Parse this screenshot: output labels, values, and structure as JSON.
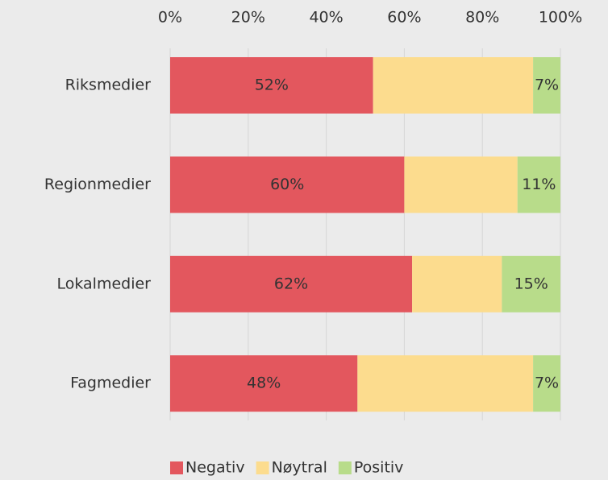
{
  "chart_data": {
    "type": "stacked-barh",
    "categories": [
      "Riksmedier",
      "Regionmedier",
      "Lokalmedier",
      "Fagmedier"
    ],
    "series": [
      {
        "name": "Negativ",
        "color": "#e3575e",
        "values": [
          52,
          60,
          62,
          48
        ],
        "value_labels": [
          "52%",
          "60%",
          "62%",
          "48%"
        ]
      },
      {
        "name": "Nøytral",
        "color": "#fcdc8e",
        "values": [
          41,
          29,
          23,
          45
        ]
      },
      {
        "name": "Positiv",
        "color": "#b8dc8a",
        "values": [
          7,
          11,
          15,
          7
        ],
        "value_labels": [
          "7%",
          "11%",
          "15%",
          "7%"
        ]
      }
    ],
    "xlim": [
      0,
      100
    ],
    "xticks": [
      {
        "value": 0,
        "label": "0%"
      },
      {
        "value": 20,
        "label": "20%"
      },
      {
        "value": 40,
        "label": "40%"
      },
      {
        "value": 60,
        "label": "60%"
      },
      {
        "value": 80,
        "label": "80%"
      },
      {
        "value": 100,
        "label": "100%"
      }
    ],
    "grid": true,
    "legend": "bottom"
  }
}
